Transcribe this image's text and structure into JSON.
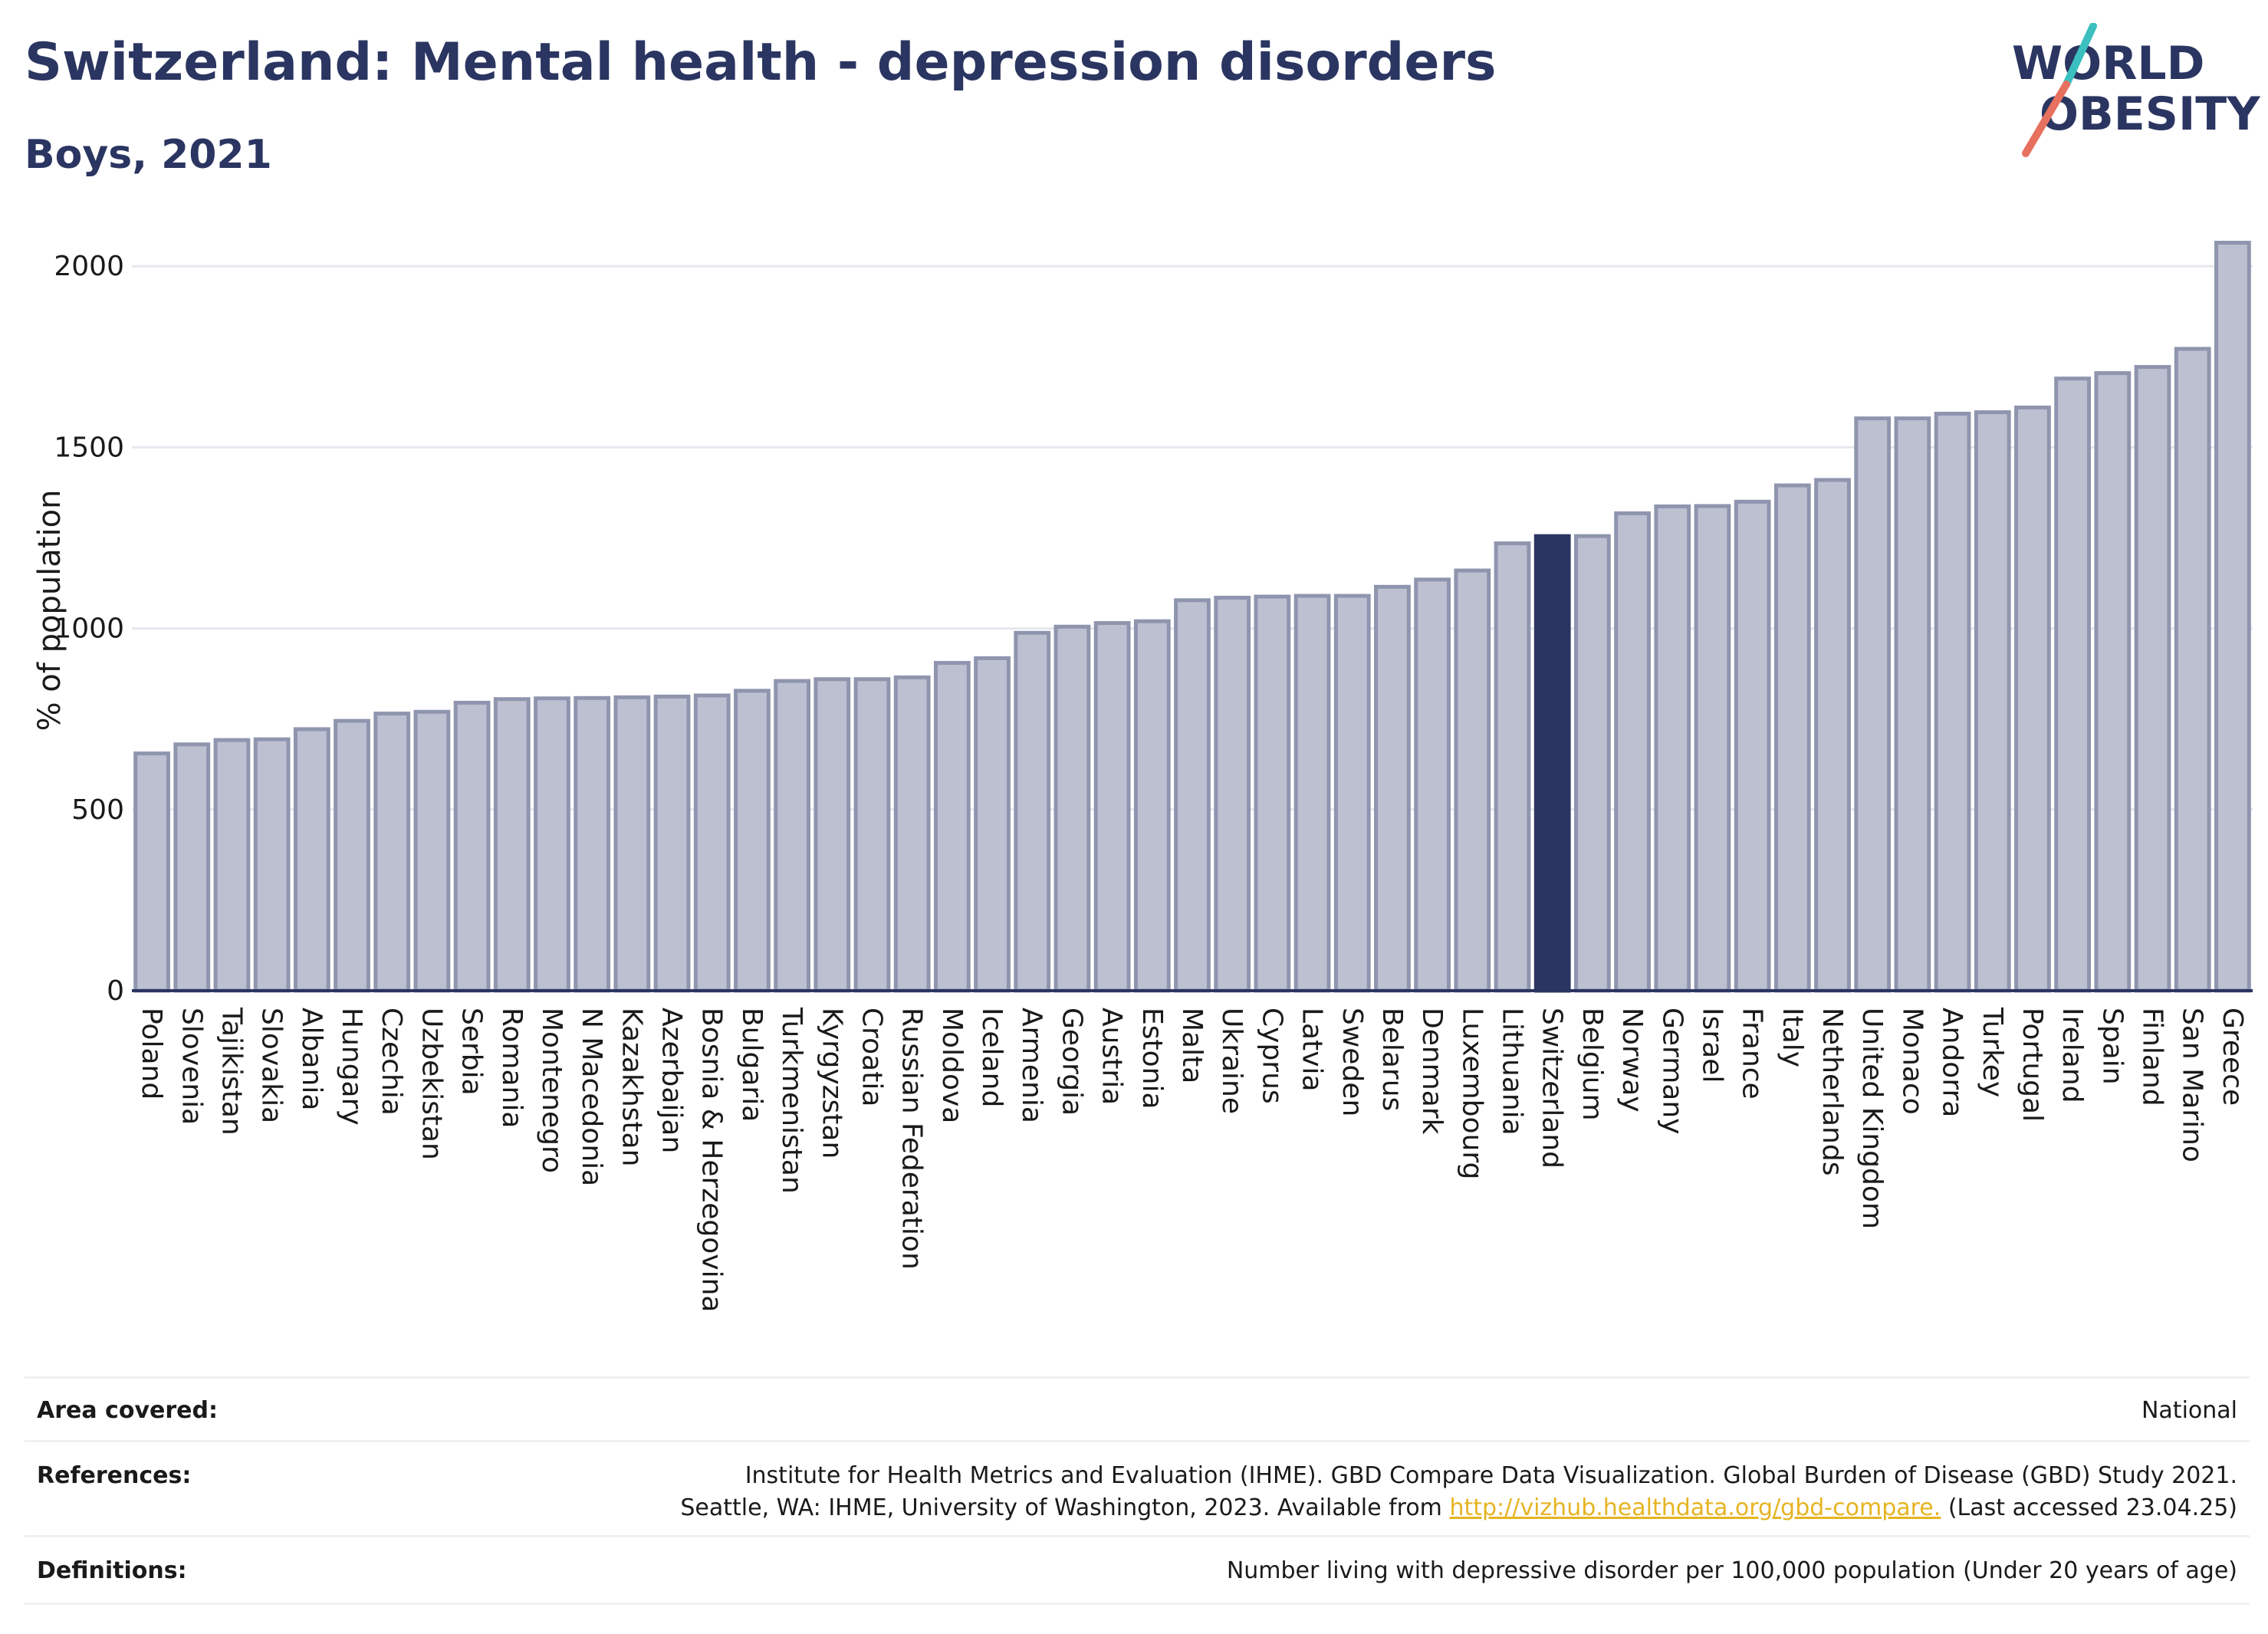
{
  "header": {
    "title": "Switzerland: Mental health - depression disorders",
    "subtitle": "Boys, 2021"
  },
  "logo": {
    "line1": "WORLD",
    "line2": "OBESITY",
    "accent_teal": "#3bbfbf",
    "accent_coral": "#e8705f"
  },
  "colors": {
    "bar_default": "#bcc0d0",
    "bar_border": "#8f95ae",
    "bar_highlight": "#2b3561",
    "grid": "#e6e8ee"
  },
  "chart_data": {
    "type": "bar",
    "ylabel": "% of population",
    "ylim": [
      0,
      2100
    ],
    "yticks": [
      0,
      500,
      1000,
      1500,
      2000
    ],
    "grid": true,
    "highlight": "Switzerland",
    "categories": [
      "Poland",
      "Slovenia",
      "Tajikistan",
      "Slovakia",
      "Albania",
      "Hungary",
      "Czechia",
      "Uzbekistan",
      "Serbia",
      "Romania",
      "Montenegro",
      "N Macedonia",
      "Kazakhstan",
      "Azerbaijan",
      "Bosnia & Herzegovina",
      "Bulgaria",
      "Turkmenistan",
      "Kyrgyzstan",
      "Croatia",
      "Russian Federation",
      "Moldova",
      "Iceland",
      "Armenia",
      "Georgia",
      "Austria",
      "Estonia",
      "Malta",
      "Ukraine",
      "Cyprus",
      "Latvia",
      "Sweden",
      "Belarus",
      "Denmark",
      "Luxembourg",
      "Lithuania",
      "Switzerland",
      "Belgium",
      "Norway",
      "Germany",
      "Israel",
      "France",
      "Italy",
      "Netherlands",
      "United Kingdom",
      "Monaco",
      "Andorra",
      "Turkey",
      "Portugal",
      "Ireland",
      "Spain",
      "Finland",
      "San Marino",
      "Greece"
    ],
    "values": [
      655,
      680,
      692,
      694,
      722,
      745,
      765,
      770,
      795,
      805,
      807,
      808,
      810,
      812,
      815,
      828,
      855,
      860,
      860,
      865,
      905,
      918,
      988,
      1005,
      1015,
      1020,
      1078,
      1085,
      1088,
      1090,
      1090,
      1115,
      1135,
      1160,
      1235,
      1255,
      1255,
      1318,
      1337,
      1338,
      1350,
      1395,
      1410,
      1580,
      1580,
      1593,
      1597,
      1610,
      1690,
      1705,
      1722,
      1772,
      2065
    ]
  },
  "info": {
    "area_label": "Area covered:",
    "area_value": "National",
    "references_label": "References:",
    "references_line1": "Institute for Health Metrics and Evaluation (IHME). GBD Compare Data Visualization. Global Burden of Disease (GBD) Study 2021.",
    "references_line2_pre": "Seattle, WA: IHME, University of Washington, 2023. Available from ",
    "references_link": "http://vizhub.healthdata.org/gbd-compare.",
    "references_line2_post": " (Last accessed 23.04.25)",
    "definitions_label": "Definitions:",
    "definitions_value": "Number living with depressive disorder per 100,000 population (Under 20 years of age)"
  }
}
